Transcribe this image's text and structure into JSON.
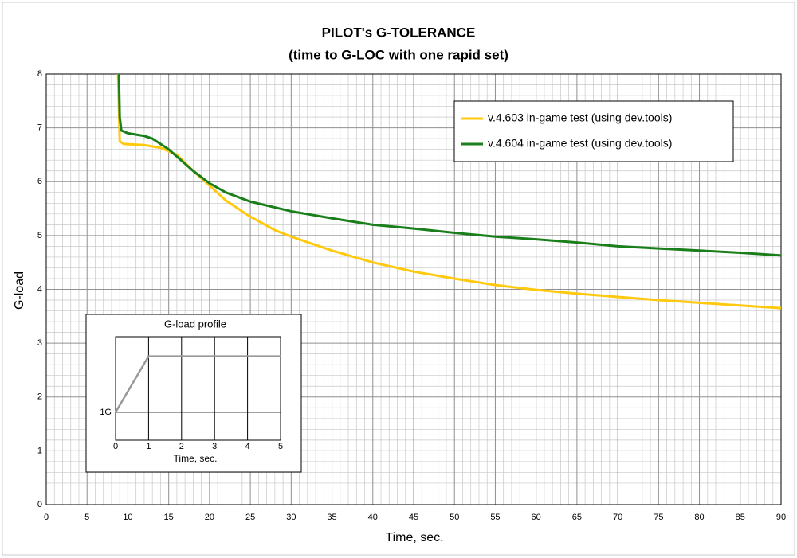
{
  "chart_data": [
    {
      "type": "line",
      "title": "PILOT's G-TOLERANCE",
      "subtitle": "(time to G-LOC with one rapid set)",
      "x_label": "Time, sec.",
      "y_label": "G-load",
      "xlim": [
        0,
        90
      ],
      "ylim": [
        0,
        8
      ],
      "xticks": [
        0,
        5,
        10,
        15,
        20,
        25,
        30,
        35,
        40,
        45,
        50,
        55,
        60,
        65,
        70,
        75,
        80,
        85,
        90
      ],
      "yticks": [
        0,
        1,
        2,
        3,
        4,
        5,
        6,
        7,
        8
      ],
      "grid": true,
      "legend": "upper right",
      "series": [
        {
          "name": "v.4.603 in-game test (using dev.tools)",
          "color": "#ffc90e",
          "x": [
            8.8,
            9.0,
            9.5,
            12,
            14,
            16,
            18,
            20,
            22,
            25,
            28,
            30,
            35,
            40,
            45,
            50,
            55,
            60,
            65,
            70,
            75,
            80,
            85,
            90
          ],
          "values": [
            8,
            6.75,
            6.7,
            6.68,
            6.63,
            6.5,
            6.2,
            5.93,
            5.65,
            5.35,
            5.1,
            4.98,
            4.72,
            4.5,
            4.33,
            4.2,
            4.08,
            3.99,
            3.92,
            3.86,
            3.8,
            3.75,
            3.7,
            3.65
          ]
        },
        {
          "name": "v.4.604 in-game test (using dev.tools)",
          "color": "#1a7f1a",
          "x": [
            8.9,
            9.0,
            9.2,
            10,
            12,
            13,
            15,
            18,
            20,
            22,
            25,
            30,
            35,
            40,
            45,
            50,
            55,
            60,
            65,
            70,
            75,
            80,
            85,
            90
          ],
          "values": [
            8,
            7.2,
            6.95,
            6.9,
            6.85,
            6.8,
            6.6,
            6.2,
            5.97,
            5.8,
            5.63,
            5.45,
            5.32,
            5.2,
            5.13,
            5.05,
            4.98,
            4.93,
            4.87,
            4.8,
            4.76,
            4.72,
            4.68,
            4.63
          ]
        }
      ]
    },
    {
      "type": "line",
      "title": "G-load profile",
      "x_label": "Time, sec.",
      "xlim": [
        0,
        5
      ],
      "ylim": [
        0,
        3.7
      ],
      "xticks": [
        0,
        1,
        2,
        3,
        4,
        5
      ],
      "yticks": [
        {
          "value": 1,
          "label": "1G"
        }
      ],
      "grid": true,
      "series": [
        {
          "color": "#999999",
          "x": [
            0,
            1,
            5
          ],
          "values": [
            1,
            3,
            3
          ]
        }
      ]
    }
  ]
}
